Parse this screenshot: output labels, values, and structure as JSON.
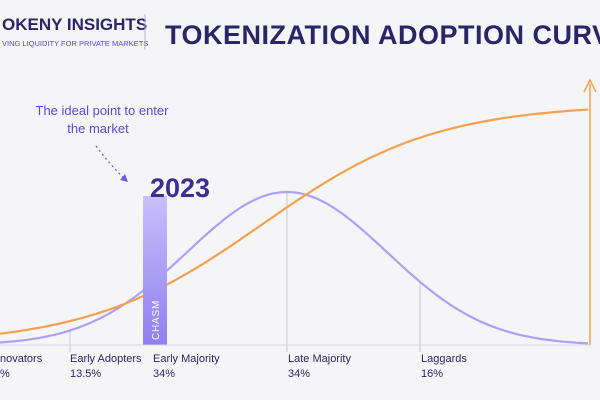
{
  "header": {
    "brand": "OKENY INSIGHTS",
    "tagline": "VING LIQUIDITY FOR PRIVATE MARKETS",
    "title": "TOKENIZATION ADOPTION CURVE"
  },
  "annotation": "The ideal point to enter the market",
  "year": "2023",
  "chasm": "CHASM",
  "segments": [
    {
      "name": "novators",
      "share": "%"
    },
    {
      "name": "Early Adopters",
      "share": "13.5%"
    },
    {
      "name": "Early Majority",
      "share": "34%"
    },
    {
      "name": "Late Majority",
      "share": "34%"
    },
    {
      "name": "Laggards",
      "share": "16%"
    }
  ]
}
